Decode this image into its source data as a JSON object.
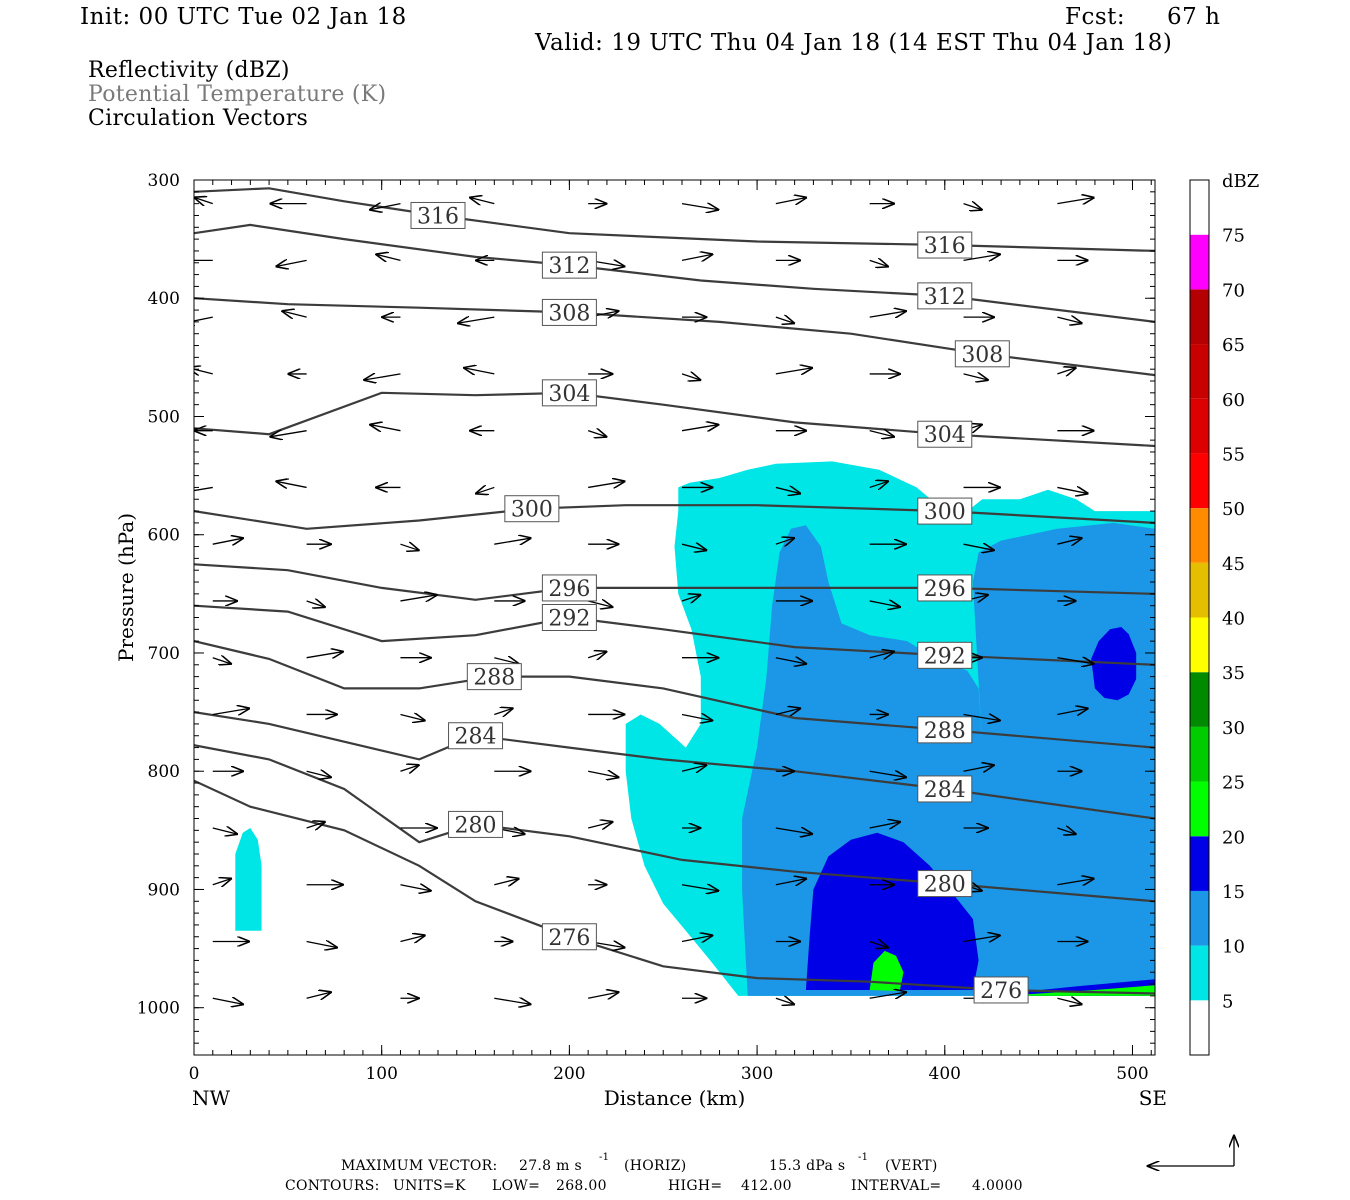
{
  "header": {
    "init": "Init: 00 UTC Tue 02 Jan 18",
    "fcst_label": "Fcst:",
    "fcst_value": "67 h",
    "valid": "Valid: 19 UTC Thu 04 Jan 18 (14 EST Thu 04 Jan 18)"
  },
  "fields": {
    "reflectivity": "Reflectivity (dBZ)",
    "theta": "Potential Temperature (K)",
    "vectors": "Circulation Vectors"
  },
  "footer": {
    "max_vector_label": "MAXIMUM VECTOR:",
    "max_horiz": "27.8 m s",
    "horiz_unit": "(HORIZ)",
    "max_vert": "15.3 dPa s",
    "vert_unit": "(VERT)",
    "exponent": "-1",
    "contours_label": "CONTOURS:",
    "units": "UNITS=K",
    "low_label": "LOW=",
    "low": "268.00",
    "high_label": "HIGH=",
    "high": "412.00",
    "interval_label": "INTERVAL=",
    "interval": "4.0000"
  },
  "colors": {
    "c5": "#00e5e5",
    "c10": "#1c96e6",
    "c15": "#0000e6",
    "c20": "#00ff00",
    "c25": "#00cc00",
    "c30": "#008a00",
    "c35": "#ffff00",
    "c40": "#e6be00",
    "c45": "#ff8c00",
    "c50": "#ff0000",
    "c55": "#dc0000",
    "c60": "#c80000",
    "c65": "#b40000",
    "c70": "#ff00ff",
    "c75": "#9955c9",
    "contour": "#3c3c3c"
  },
  "chart_data": {
    "type": "heatmap",
    "title": "Reflectivity (dBZ)",
    "xlabel": "Distance (km)",
    "ylabel": "Pressure (hPa)",
    "xlim": [
      0,
      512
    ],
    "ylim": [
      1040,
      300
    ],
    "x_ticks": [
      "0",
      "100",
      "200",
      "300",
      "400",
      "500"
    ],
    "y_ticks": [
      "300",
      "400",
      "500",
      "600",
      "700",
      "800",
      "900",
      "1000"
    ],
    "x_end_labels": {
      "left": "NW",
      "right": "SE"
    },
    "colorbar": {
      "unit": "dBZ",
      "levels": [
        "5",
        "10",
        "15",
        "20",
        "25",
        "30",
        "35",
        "40",
        "45",
        "50",
        "55",
        "60",
        "65",
        "70",
        "75"
      ]
    },
    "reflectivity_regions": [
      {
        "level": 5,
        "polygon": [
          [
            258,
            560
          ],
          [
            264,
            556
          ],
          [
            280,
            552
          ],
          [
            295,
            545
          ],
          [
            310,
            540
          ],
          [
            340,
            538
          ],
          [
            365,
            545
          ],
          [
            385,
            560
          ],
          [
            400,
            580
          ],
          [
            412,
            580
          ],
          [
            420,
            570
          ],
          [
            440,
            570
          ],
          [
            455,
            562
          ],
          [
            470,
            570
          ],
          [
            480,
            580
          ],
          [
            512,
            580
          ],
          [
            512,
            990
          ],
          [
            290,
            990
          ],
          [
            275,
            960
          ],
          [
            262,
            935
          ],
          [
            250,
            912
          ],
          [
            240,
            880
          ],
          [
            233,
            840
          ],
          [
            230,
            800
          ],
          [
            230,
            760
          ],
          [
            238,
            752
          ],
          [
            248,
            760
          ],
          [
            262,
            780
          ],
          [
            270,
            760
          ],
          [
            270,
            720
          ],
          [
            265,
            680
          ],
          [
            258,
            650
          ],
          [
            256,
            610
          ],
          [
            258,
            580
          ]
        ]
      },
      {
        "level": 5,
        "polygon": [
          [
            22,
            935
          ],
          [
            22,
            870
          ],
          [
            26,
            852
          ],
          [
            30,
            848
          ],
          [
            34,
            858
          ],
          [
            36,
            880
          ],
          [
            36,
            935
          ]
        ]
      },
      {
        "level": 10,
        "polygon": [
          [
            295,
            990
          ],
          [
            292,
            900
          ],
          [
            292,
            840
          ],
          [
            300,
            780
          ],
          [
            305,
            720
          ],
          [
            308,
            660
          ],
          [
            312,
            615
          ],
          [
            318,
            595
          ],
          [
            326,
            592
          ],
          [
            334,
            610
          ],
          [
            338,
            640
          ],
          [
            345,
            675
          ],
          [
            360,
            685
          ],
          [
            380,
            690
          ],
          [
            395,
            705
          ],
          [
            412,
            715
          ],
          [
            418,
            730
          ],
          [
            420,
            780
          ],
          [
            415,
            640
          ],
          [
            418,
            615
          ],
          [
            430,
            605
          ],
          [
            460,
            595
          ],
          [
            490,
            590
          ],
          [
            512,
            595
          ],
          [
            512,
            990
          ]
        ]
      },
      {
        "level": 15,
        "polygon": [
          [
            326,
            985
          ],
          [
            328,
            940
          ],
          [
            330,
            900
          ],
          [
            338,
            872
          ],
          [
            350,
            858
          ],
          [
            364,
            852
          ],
          [
            378,
            860
          ],
          [
            392,
            880
          ],
          [
            405,
            905
          ],
          [
            415,
            925
          ],
          [
            418,
            960
          ],
          [
            415,
            985
          ]
        ]
      },
      {
        "level": 15,
        "polygon": [
          [
            480,
            730
          ],
          [
            478,
            705
          ],
          [
            482,
            690
          ],
          [
            488,
            680
          ],
          [
            494,
            678
          ],
          [
            498,
            684
          ],
          [
            502,
            700
          ],
          [
            502,
            722
          ],
          [
            498,
            735
          ],
          [
            492,
            740
          ],
          [
            485,
            738
          ]
        ]
      },
      {
        "level": 15,
        "polygon": [
          [
            420,
            990
          ],
          [
            470,
            982
          ],
          [
            512,
            976
          ],
          [
            512,
            990
          ]
        ]
      },
      {
        "level": 20,
        "polygon": [
          [
            360,
            985
          ],
          [
            362,
            962
          ],
          [
            368,
            952
          ],
          [
            374,
            956
          ],
          [
            378,
            970
          ],
          [
            376,
            986
          ]
        ]
      },
      {
        "level": 20,
        "polygon": [
          [
            430,
            990
          ],
          [
            480,
            985
          ],
          [
            512,
            981
          ],
          [
            512,
            990
          ]
        ]
      }
    ],
    "isentropes": [
      {
        "theta": 316,
        "points": [
          [
            0,
            310
          ],
          [
            40,
            307
          ],
          [
            80,
            318
          ],
          [
            130,
            330
          ],
          [
            200,
            345
          ],
          [
            300,
            352
          ],
          [
            400,
            355
          ],
          [
            512,
            360
          ]
        ]
      },
      {
        "theta": 312,
        "points": [
          [
            0,
            345
          ],
          [
            30,
            338
          ],
          [
            80,
            350
          ],
          [
            150,
            365
          ],
          [
            200,
            372
          ],
          [
            270,
            385
          ],
          [
            330,
            392
          ],
          [
            400,
            398
          ],
          [
            512,
            420
          ]
        ]
      },
      {
        "theta": 308,
        "points": [
          [
            0,
            400
          ],
          [
            50,
            405
          ],
          [
            120,
            408
          ],
          [
            200,
            412
          ],
          [
            280,
            420
          ],
          [
            350,
            430
          ],
          [
            420,
            447
          ],
          [
            512,
            465
          ]
        ]
      },
      {
        "theta": 304,
        "points": [
          [
            0,
            510
          ],
          [
            40,
            515
          ],
          [
            100,
            480
          ],
          [
            150,
            482
          ],
          [
            200,
            480
          ],
          [
            250,
            490
          ],
          [
            320,
            505
          ],
          [
            400,
            515
          ],
          [
            512,
            525
          ]
        ]
      },
      {
        "theta": 300,
        "points": [
          [
            0,
            580
          ],
          [
            60,
            595
          ],
          [
            120,
            588
          ],
          [
            180,
            578
          ],
          [
            230,
            575
          ],
          [
            300,
            575
          ],
          [
            400,
            580
          ],
          [
            512,
            590
          ]
        ]
      },
      {
        "theta": 296,
        "points": [
          [
            0,
            625
          ],
          [
            50,
            630
          ],
          [
            100,
            645
          ],
          [
            150,
            655
          ],
          [
            200,
            645
          ],
          [
            260,
            645
          ],
          [
            320,
            645
          ],
          [
            400,
            645
          ],
          [
            512,
            650
          ]
        ]
      },
      {
        "theta": 292,
        "points": [
          [
            0,
            660
          ],
          [
            50,
            665
          ],
          [
            100,
            690
          ],
          [
            150,
            685
          ],
          [
            200,
            670
          ],
          [
            250,
            680
          ],
          [
            320,
            695
          ],
          [
            400,
            702
          ],
          [
            512,
            710
          ]
        ]
      },
      {
        "theta": 288,
        "points": [
          [
            0,
            690
          ],
          [
            40,
            705
          ],
          [
            80,
            730
          ],
          [
            120,
            730
          ],
          [
            160,
            720
          ],
          [
            200,
            720
          ],
          [
            250,
            730
          ],
          [
            320,
            755
          ],
          [
            400,
            765
          ],
          [
            512,
            780
          ]
        ]
      },
      {
        "theta": 284,
        "points": [
          [
            0,
            750
          ],
          [
            40,
            760
          ],
          [
            80,
            775
          ],
          [
            120,
            790
          ],
          [
            150,
            770
          ],
          [
            200,
            780
          ],
          [
            250,
            790
          ],
          [
            320,
            800
          ],
          [
            400,
            815
          ],
          [
            512,
            840
          ]
        ]
      },
      {
        "theta": 280,
        "points": [
          [
            0,
            778
          ],
          [
            40,
            790
          ],
          [
            80,
            815
          ],
          [
            120,
            860
          ],
          [
            150,
            845
          ],
          [
            200,
            855
          ],
          [
            260,
            875
          ],
          [
            320,
            885
          ],
          [
            400,
            895
          ],
          [
            512,
            910
          ]
        ]
      },
      {
        "theta": 276,
        "points": [
          [
            0,
            808
          ],
          [
            30,
            830
          ],
          [
            80,
            850
          ],
          [
            120,
            880
          ],
          [
            150,
            910
          ],
          [
            200,
            940
          ],
          [
            250,
            965
          ],
          [
            300,
            975
          ],
          [
            360,
            978
          ],
          [
            430,
            985
          ],
          [
            512,
            988
          ]
        ]
      }
    ]
  }
}
